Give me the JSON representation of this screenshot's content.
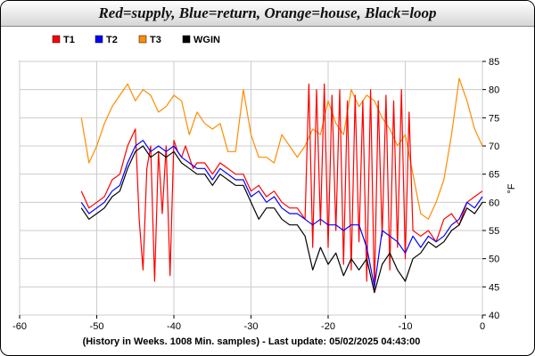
{
  "chart_data": {
    "type": "line",
    "title": "Red=supply, Blue=return, Orange=house, Black=loop",
    "footer": "(History in Weeks. 1008 Min. samples) - Last update: 05/02/2025 04:43:00",
    "ylabel": "°F",
    "xlim": [
      -60,
      0
    ],
    "ylim": [
      40,
      85
    ],
    "x_ticks": [
      -60,
      -50,
      -40,
      -30,
      -20,
      -10,
      0
    ],
    "y_ticks": [
      40,
      45,
      50,
      55,
      60,
      65,
      70,
      75,
      80,
      85
    ],
    "grid": true,
    "legend_position": "top-left",
    "series": [
      {
        "name": "T1",
        "color": "#ff0000",
        "x": [
          -52,
          -51,
          -50,
          -49,
          -48,
          -47,
          -46,
          -45,
          -44.5,
          -44,
          -43.5,
          -43,
          -42.5,
          -42,
          -41.5,
          -41,
          -40.5,
          -40,
          -39.5,
          -39,
          -38.5,
          -38,
          -37.5,
          -37,
          -36,
          -35,
          -34,
          -33,
          -32,
          -31,
          -30,
          -29,
          -28,
          -27,
          -26,
          -25,
          -24,
          -23,
          -22.5,
          -22,
          -21.5,
          -21,
          -20.5,
          -20,
          -19.5,
          -19,
          -18.5,
          -18,
          -17.5,
          -17,
          -16.5,
          -16,
          -15.5,
          -15,
          -14.5,
          -14,
          -13.5,
          -13,
          -12.5,
          -12,
          -11.5,
          -11,
          -10.5,
          -10,
          -9.5,
          -9,
          -8,
          -7,
          -6,
          -5,
          -4,
          -3,
          -2,
          -1,
          0
        ],
        "y": [
          62,
          59,
          60,
          61,
          64,
          65,
          70,
          73,
          57,
          48,
          66,
          70,
          46,
          69,
          58,
          70,
          47,
          71,
          69,
          68,
          70,
          68,
          66,
          67,
          67,
          65,
          67,
          66,
          65,
          65,
          62,
          63,
          61,
          62,
          60,
          59,
          59,
          57,
          81,
          52,
          80,
          56,
          81,
          52,
          79,
          55,
          80,
          49,
          78,
          48,
          79,
          53,
          78,
          46,
          80,
          44,
          78,
          54,
          79,
          48,
          78,
          52,
          80,
          50,
          76,
          55,
          54,
          55,
          53,
          57,
          58,
          56,
          60,
          61,
          62
        ]
      },
      {
        "name": "T2",
        "color": "#0000ff",
        "x": [
          -52,
          -51,
          -50,
          -49,
          -48,
          -47,
          -46,
          -45,
          -44,
          -43,
          -42,
          -41,
          -40,
          -39,
          -38,
          -37,
          -36,
          -35,
          -34,
          -33,
          -32,
          -31,
          -30,
          -29,
          -28,
          -27,
          -26,
          -25,
          -24,
          -23,
          -22,
          -21,
          -20,
          -19,
          -18,
          -17,
          -16,
          -15,
          -14,
          -13,
          -12,
          -11,
          -10,
          -9,
          -8,
          -7,
          -6,
          -5,
          -4,
          -3,
          -2,
          -1,
          0
        ],
        "y": [
          60,
          58,
          59,
          60,
          62,
          63,
          67,
          70,
          71,
          69,
          70,
          69,
          70,
          68,
          67,
          66,
          66,
          64,
          66,
          65,
          64,
          64,
          61,
          62,
          60,
          61,
          59,
          58,
          58,
          57,
          56,
          57,
          56,
          56,
          55,
          56,
          56,
          52,
          45,
          55,
          54,
          53,
          51,
          54,
          52,
          54,
          53,
          54,
          56,
          57,
          60,
          59,
          61
        ]
      },
      {
        "name": "T3",
        "color": "#ff8c00",
        "x": [
          -52,
          -51,
          -50,
          -49,
          -48,
          -47,
          -46,
          -45,
          -44,
          -43,
          -42,
          -41,
          -40,
          -39,
          -38,
          -37,
          -36,
          -35,
          -34,
          -33,
          -32,
          -31,
          -30,
          -29,
          -28,
          -27,
          -26,
          -25,
          -24,
          -23,
          -22,
          -21,
          -20,
          -19,
          -18,
          -17,
          -16,
          -15,
          -14,
          -13,
          -12,
          -11,
          -10,
          -9,
          -8,
          -7,
          -6,
          -5,
          -4,
          -3,
          -2,
          -1,
          0
        ],
        "y": [
          75,
          67,
          70,
          74,
          77,
          79,
          81,
          78,
          80,
          79,
          76,
          77,
          79,
          78,
          72,
          76,
          74,
          73,
          74,
          69,
          69,
          80,
          72,
          68,
          68,
          67,
          72,
          70,
          68,
          70,
          73,
          72,
          78,
          74,
          72,
          80,
          77,
          79,
          78,
          75,
          73,
          70,
          72,
          65,
          58,
          57,
          60,
          64,
          72,
          82,
          78,
          73,
          70
        ]
      },
      {
        "name": "WGIN",
        "color": "#000000",
        "x": [
          -52,
          -51,
          -50,
          -49,
          -48,
          -47,
          -46,
          -45,
          -44,
          -43,
          -42,
          -41,
          -40,
          -39,
          -38,
          -37,
          -36,
          -35,
          -34,
          -33,
          -32,
          -31,
          -30,
          -29,
          -28,
          -27,
          -26,
          -25,
          -24,
          -23,
          -22,
          -21,
          -20,
          -19,
          -18,
          -17,
          -16,
          -15,
          -14,
          -13,
          -12,
          -11,
          -10,
          -9,
          -8,
          -7,
          -6,
          -5,
          -4,
          -3,
          -2,
          -1,
          0
        ],
        "y": [
          59,
          57,
          58,
          59,
          61,
          62,
          66,
          69,
          70,
          68,
          69,
          68,
          69,
          67,
          66,
          65,
          65,
          63,
          65,
          64,
          63,
          63,
          60,
          57,
          59,
          59,
          57,
          56,
          56,
          54,
          48,
          52,
          49,
          51,
          47,
          50,
          48,
          50,
          44,
          49,
          51,
          48,
          46,
          50,
          51,
          53,
          52,
          53,
          55,
          56,
          59,
          58,
          60
        ]
      }
    ]
  }
}
